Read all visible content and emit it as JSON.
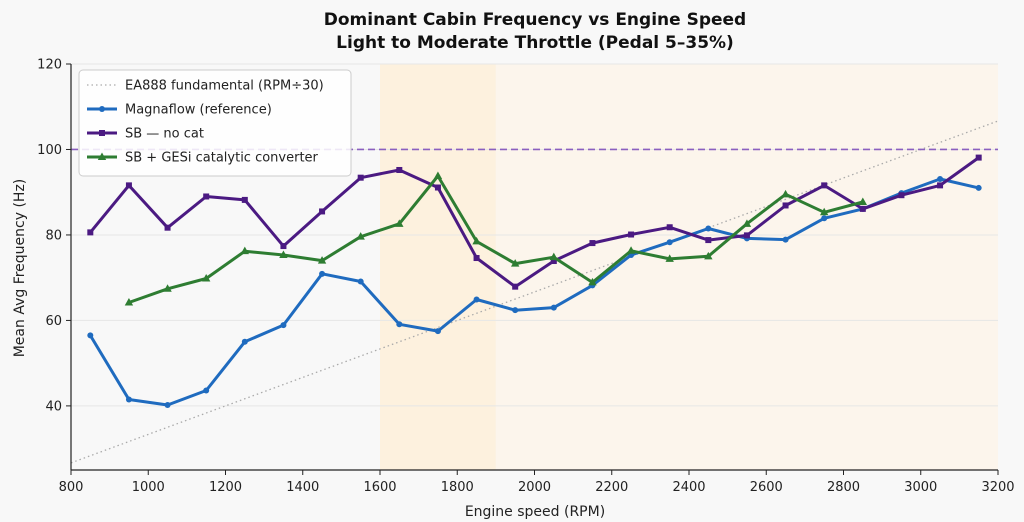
{
  "chart_data": {
    "type": "line",
    "title": "Dominant Cabin Frequency vs Engine Speed",
    "subtitle": "Light to Moderate Throttle (Pedal 5–35%)",
    "xlabel": "Engine speed (RPM)",
    "ylabel": "Mean Avg Frequency (Hz)",
    "xlim": [
      800,
      3200
    ],
    "ylim": [
      25,
      120
    ],
    "xticks": [
      800,
      1000,
      1200,
      1400,
      1600,
      1800,
      2000,
      2200,
      2400,
      2600,
      2800,
      3000,
      3200
    ],
    "yticks": [
      40,
      60,
      80,
      100,
      120
    ],
    "grid": true,
    "legend_position": "top-left",
    "highlight_bands": [
      {
        "x": [
          1600,
          1900
        ],
        "color": "#fdf1de"
      },
      {
        "x": [
          1900,
          3200
        ],
        "color": "#fcf5ec"
      }
    ],
    "reference_lines": [
      {
        "name": "EA888 fundamental (RPM÷30)",
        "slope": 0.0333333,
        "intercept": 0,
        "color": "#aaaaaa",
        "style": "dotted"
      }
    ],
    "hlines": [
      {
        "y": 100,
        "color": "#8a5fbf",
        "style": "dashed"
      }
    ],
    "series": [
      {
        "name": "Magnaflow (reference)",
        "color": "#1f6bbf",
        "marker": "circle",
        "x": [
          850,
          950,
          1050,
          1150,
          1250,
          1350,
          1450,
          1550,
          1650,
          1750,
          1850,
          1950,
          2050,
          2150,
          2250,
          2350,
          2450,
          2550,
          2650,
          2750,
          2850,
          2950,
          3050,
          3150
        ],
        "y": [
          56.5,
          41.5,
          40.2,
          43.6,
          55.0,
          58.9,
          70.9,
          69.1,
          59.1,
          57.5,
          64.9,
          62.4,
          63.0,
          68.2,
          75.3,
          78.3,
          81.5,
          79.2,
          78.9,
          83.9,
          86.1,
          89.8,
          93.1,
          91.0
        ]
      },
      {
        "name": "SB — no cat",
        "color": "#4b1a82",
        "marker": "square",
        "x": [
          850,
          950,
          1050,
          1150,
          1250,
          1350,
          1450,
          1550,
          1650,
          1750,
          1850,
          1950,
          2050,
          2150,
          2250,
          2350,
          2450,
          2550,
          2650,
          2750,
          2850,
          2950,
          3050,
          3150
        ],
        "y": [
          80.6,
          91.6,
          81.7,
          89.0,
          88.2,
          77.4,
          85.5,
          93.4,
          95.2,
          91.1,
          74.6,
          67.9,
          73.9,
          78.1,
          80.1,
          81.8,
          78.8,
          79.9,
          86.9,
          91.6,
          86.1,
          89.3,
          91.6,
          98.1
        ]
      },
      {
        "name": "SB + GESi catalytic converter",
        "color": "#2e7d32",
        "marker": "triangle",
        "x": [
          950,
          1050,
          1150,
          1250,
          1350,
          1450,
          1550,
          1650,
          1750,
          1850,
          1950,
          2050,
          2150,
          2250,
          2350,
          2450,
          2550,
          2650,
          2750,
          2850
        ],
        "y": [
          64.2,
          67.4,
          69.8,
          76.2,
          75.3,
          74.0,
          79.6,
          82.6,
          93.8,
          78.5,
          73.3,
          74.8,
          68.9,
          76.3,
          74.4,
          75.0,
          82.6,
          89.5,
          85.3,
          87.7
        ]
      }
    ]
  }
}
